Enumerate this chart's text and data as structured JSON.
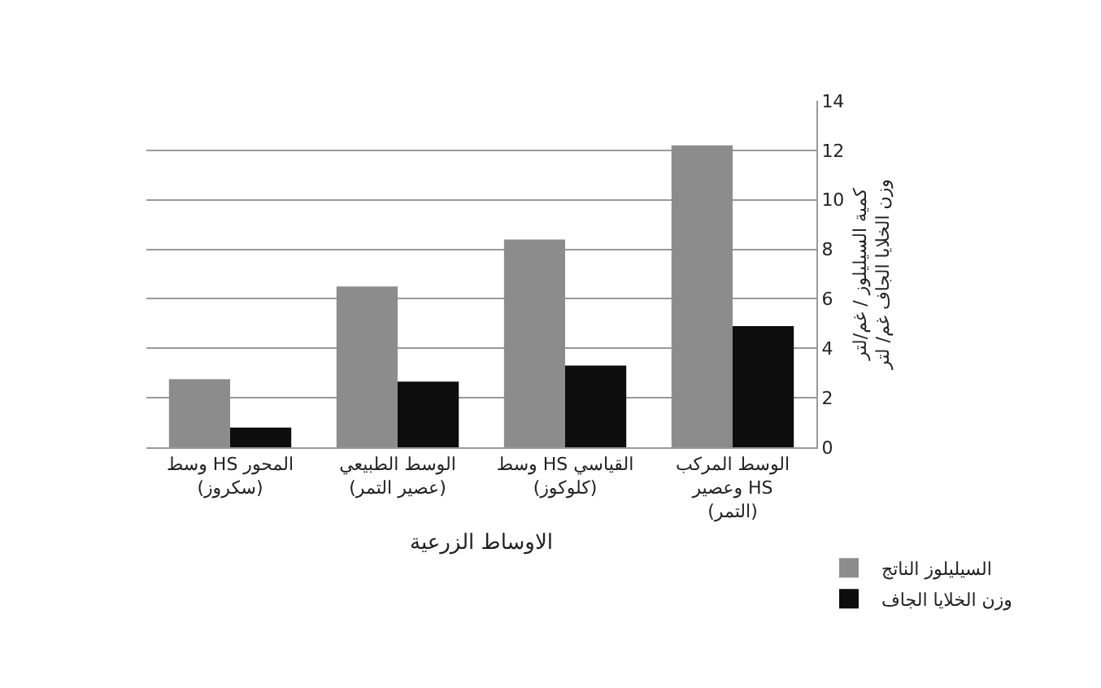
{
  "chart_data": {
    "type": "bar",
    "xlabel": "الاوساط الزرعية",
    "ylabel": "كمية السيليلوز / غم/لتر\nوزن الخلايا الجاف غم/ لتر",
    "categories": [
      "وسط HS المحور\n(سكروز)",
      "الوسط الطبيعي\n(عصير التمر)",
      "وسط HS القياسي\n(كلوكوز)",
      "الوسط المركب\nوعصير HS\n(التمر)"
    ],
    "series": [
      {
        "name": "السيليلوز الناتج",
        "color": "#8c8c8c",
        "values": [
          2.75,
          6.5,
          8.4,
          12.2
        ]
      },
      {
        "name": "وزن الخلايا الجاف",
        "color": "#0d0d0d",
        "values": [
          0.8,
          2.65,
          3.3,
          4.9
        ]
      }
    ],
    "ylim": [
      0,
      14
    ],
    "yticks": [
      0,
      2,
      4,
      6,
      8,
      10,
      12,
      14
    ],
    "grid": "y",
    "legend": "bottom right"
  }
}
